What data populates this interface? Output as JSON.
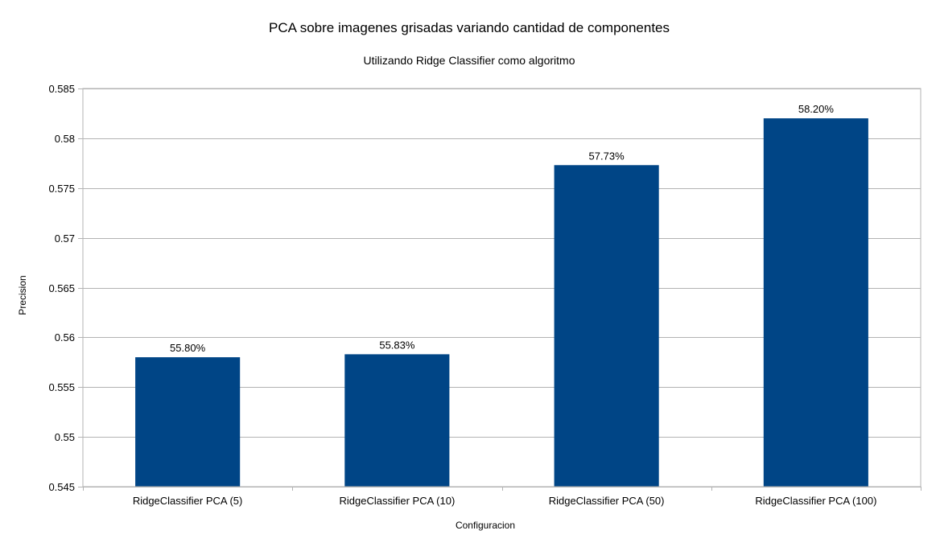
{
  "chart_data": {
    "type": "bar",
    "title": "PCA sobre imagenes grisadas variando cantidad de componentes",
    "subtitle": "Utilizando Ridge Classifier como algoritmo",
    "xlabel": "Configuracion",
    "ylabel": "Precision",
    "categories": [
      "RidgeClassifier PCA (5)",
      "RidgeClassifier PCA (10)",
      "RidgeClassifier PCA (50)",
      "RidgeClassifier PCA (100)"
    ],
    "values": [
      0.558,
      0.5583,
      0.5773,
      0.582
    ],
    "data_labels": [
      "55.80%",
      "55.83%",
      "57.73%",
      "58.20%"
    ],
    "ylim": [
      0.545,
      0.585
    ],
    "yticks": [
      0.545,
      0.55,
      0.555,
      0.56,
      0.565,
      0.57,
      0.575,
      0.58,
      0.585
    ],
    "ytick_labels": [
      "0.545",
      "0.55",
      "0.555",
      "0.56",
      "0.565",
      "0.57",
      "0.575",
      "0.58",
      "0.585"
    ],
    "bar_color": "#004586",
    "grid": true,
    "legend": "none"
  }
}
